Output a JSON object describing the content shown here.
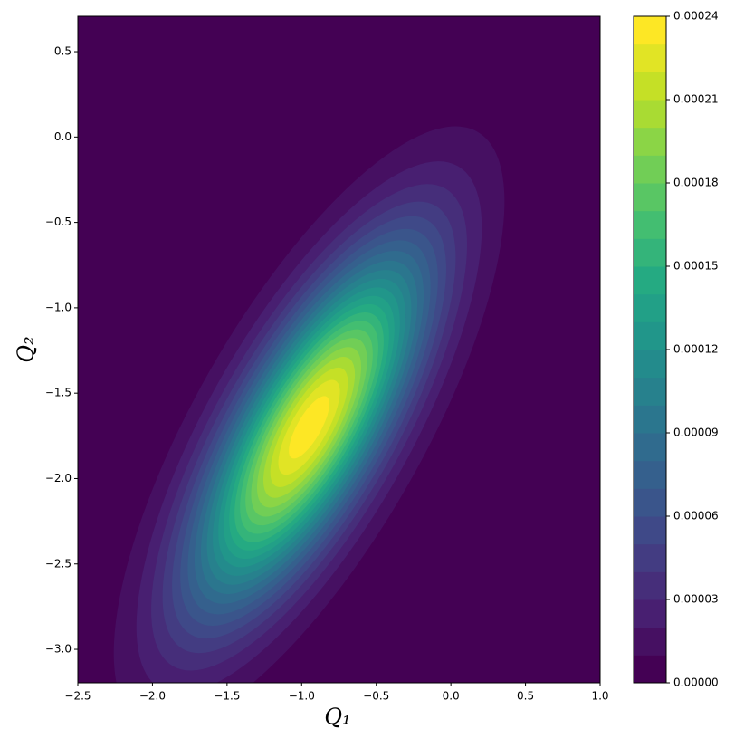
{
  "chart_data": {
    "type": "contour",
    "x_label": "Q₁",
    "y_label": "Q₂",
    "xlim": [
      -2.5,
      1.0
    ],
    "ylim": [
      -3.196,
      0.707
    ],
    "xticks": [
      {
        "value": -2.5,
        "label": "−2.5"
      },
      {
        "value": -2.0,
        "label": "−2.0"
      },
      {
        "value": -1.5,
        "label": "−1.5"
      },
      {
        "value": -1.0,
        "label": "−1.0"
      },
      {
        "value": -0.5,
        "label": "−0.5"
      },
      {
        "value": 0.0,
        "label": "0.0"
      },
      {
        "value": 0.5,
        "label": "0.5"
      },
      {
        "value": 1.0,
        "label": "1.0"
      }
    ],
    "yticks": [
      {
        "value": 0.5,
        "label": "0.5"
      },
      {
        "value": 0.0,
        "label": "0.0"
      },
      {
        "value": -0.5,
        "label": "−0.5"
      },
      {
        "value": -1.0,
        "label": "−1.0"
      },
      {
        "value": -1.5,
        "label": "−1.5"
      },
      {
        "value": -2.0,
        "label": "−2.0"
      },
      {
        "value": -2.5,
        "label": "−2.5"
      },
      {
        "value": -3.0,
        "label": "−3.0"
      }
    ],
    "distribution": {
      "mean": [
        -0.95,
        -1.7
      ],
      "sigma": [
        0.52,
        0.7
      ],
      "rho": 0.75,
      "peak": 0.000238
    },
    "levels": [
      0,
      1e-05,
      2e-05,
      3e-05,
      4e-05,
      5e-05,
      6e-05,
      7e-05,
      8e-05,
      9e-05,
      0.0001,
      0.00011,
      0.00012,
      0.00013,
      0.00014,
      0.00015,
      0.00016,
      0.00017,
      0.00018,
      0.00019,
      0.0002,
      0.00021,
      0.00022,
      0.00023,
      0.00024
    ],
    "colors": [
      "#440154",
      "#461062",
      "#481f71",
      "#462e7a",
      "#433c82",
      "#3f4988",
      "#3a558b",
      "#35608d",
      "#306b8e",
      "#2b768e",
      "#27818d",
      "#238b8c",
      "#21968a",
      "#22a087",
      "#25aa82",
      "#34b47a",
      "#43be71",
      "#59c664",
      "#71ce56",
      "#8bd546",
      "#a9db33",
      "#c5e026",
      "#e1e425",
      "#fde725"
    ],
    "colorbar_ticks": [
      {
        "value": 0,
        "label": "0.00000"
      },
      {
        "value": 3e-05,
        "label": "0.00003"
      },
      {
        "value": 6e-05,
        "label": "0.00006"
      },
      {
        "value": 9e-05,
        "label": "0.00009"
      },
      {
        "value": 0.00012,
        "label": "0.00012"
      },
      {
        "value": 0.00015,
        "label": "0.00015"
      },
      {
        "value": 0.00018,
        "label": "0.00018"
      },
      {
        "value": 0.00021,
        "label": "0.00021"
      },
      {
        "value": 0.00024,
        "label": "0.00024"
      }
    ]
  }
}
